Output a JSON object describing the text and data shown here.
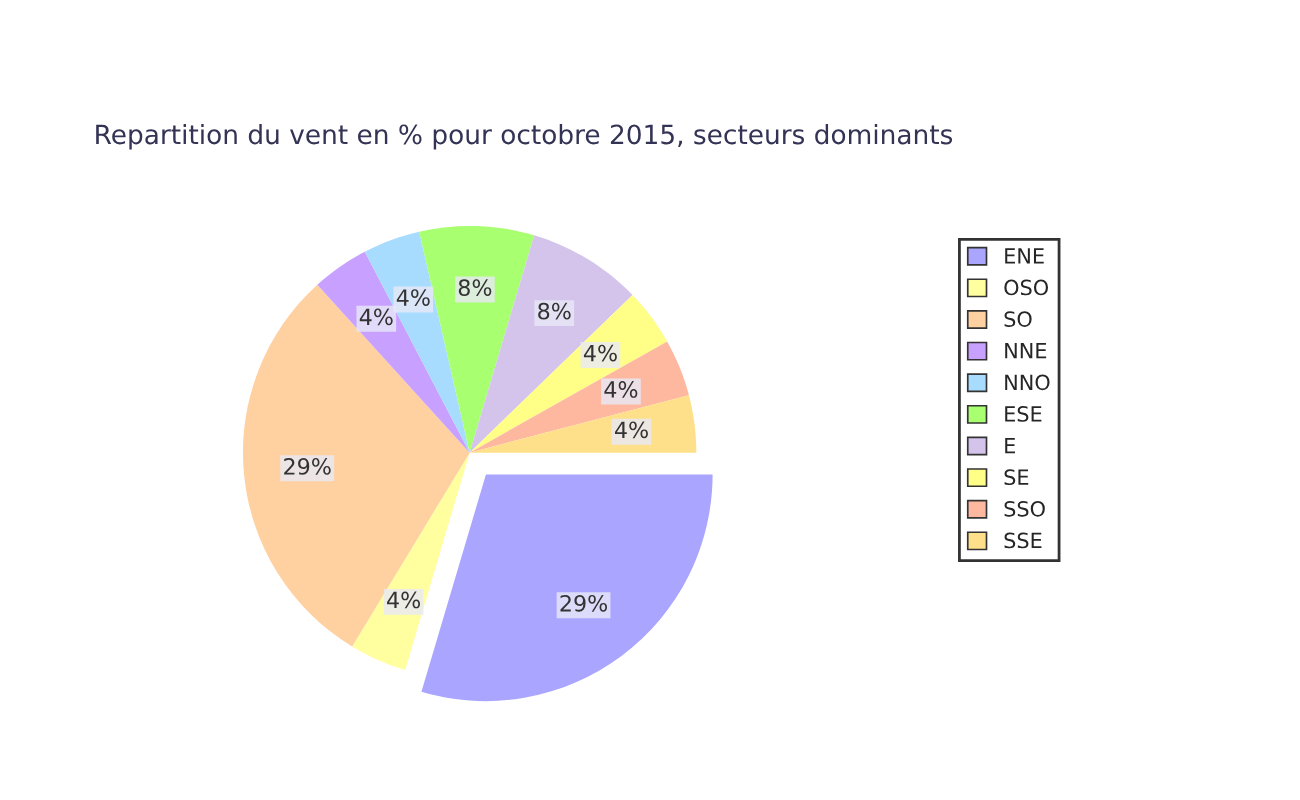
{
  "chart_data": {
    "type": "pie",
    "title": "Repartition du vent en % pour octobre 2015, secteurs dominants",
    "categories": [
      "ENE",
      "OSO",
      "SO",
      "NNE",
      "NNO",
      "ESE",
      "E",
      "SE",
      "SSO",
      "SSE"
    ],
    "values": [
      29,
      4,
      29,
      4,
      4,
      8,
      8,
      4,
      4,
      4
    ],
    "value_labels": [
      "29%",
      "4%",
      "29%",
      "4%",
      "4%",
      "8%",
      "8%",
      "4%",
      "4%",
      "4%"
    ],
    "colors": [
      "#aaa5ff",
      "#ffffa0",
      "#ffd0a0",
      "#c8a0ff",
      "#a8dcff",
      "#a8ff70",
      "#d4c4ec",
      "#ffff88",
      "#ffb8a0",
      "#ffe08a"
    ],
    "legend": "right"
  }
}
